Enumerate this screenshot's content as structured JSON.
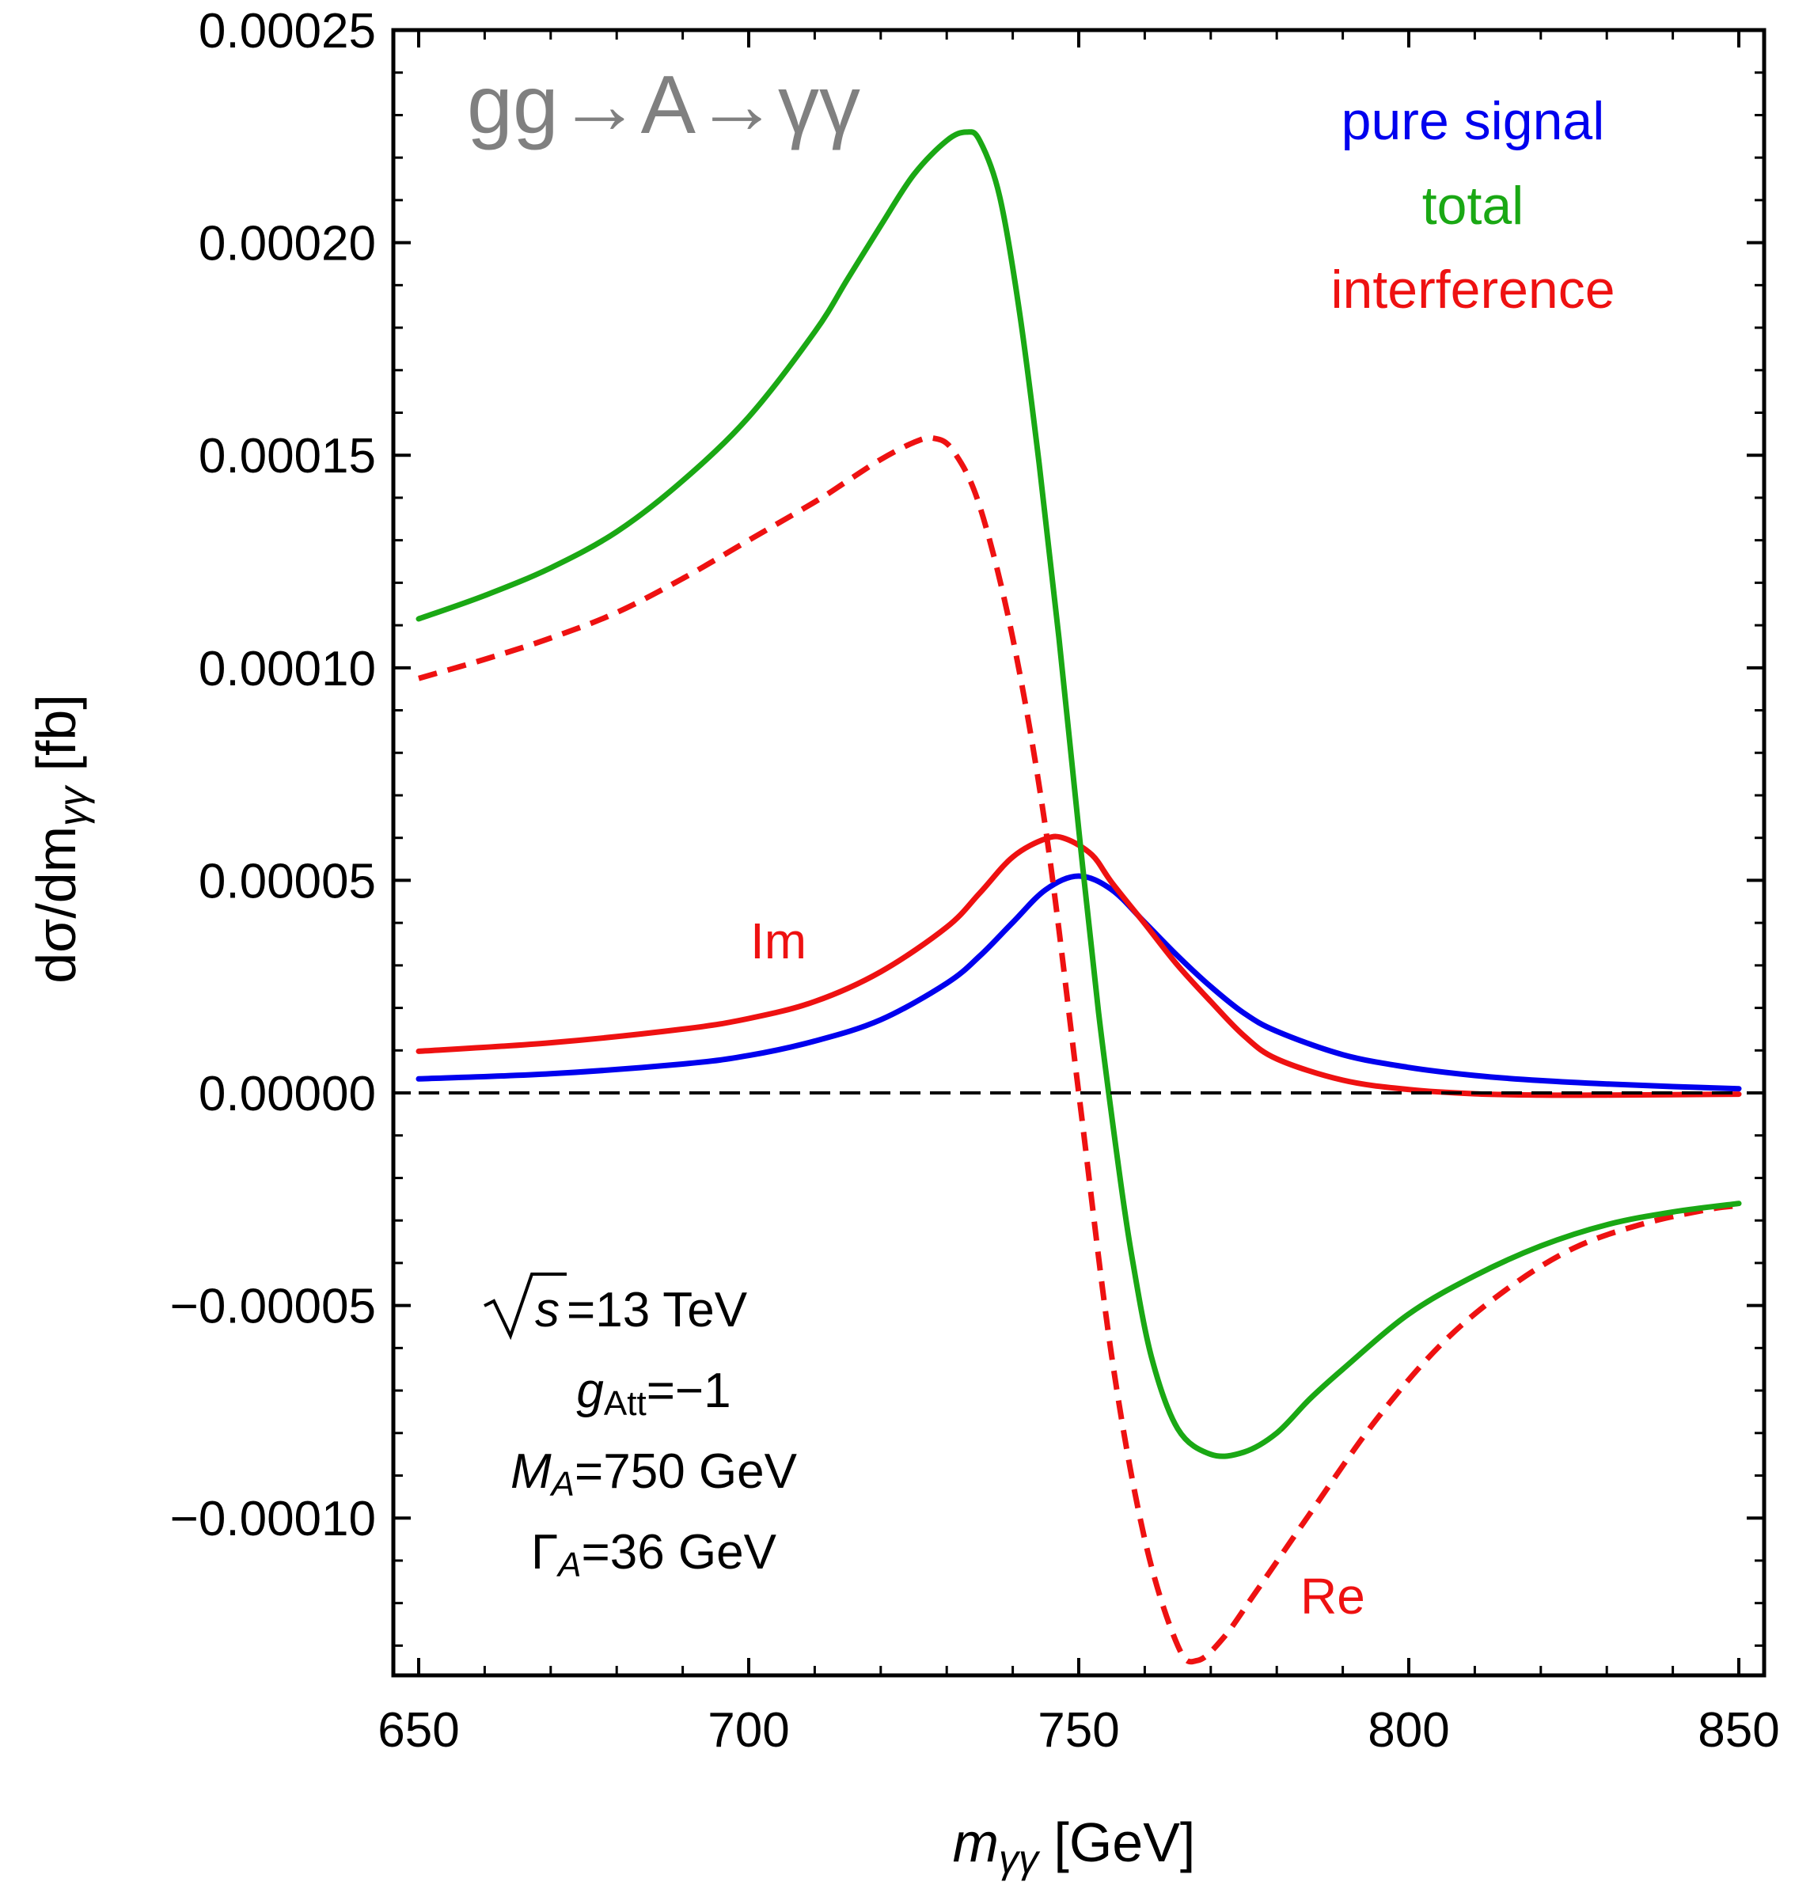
{
  "chart_data": {
    "type": "line",
    "title": "gg→A→γγ",
    "xlabel": "m",
    "xlabel_sub": "γγ",
    "xlabel_unit": " [GeV]",
    "ylabel": "dσ/dm",
    "ylabel_sub": "γγ",
    "ylabel_unit": " [fb]",
    "xlim": [
      650,
      850
    ],
    "ylim": [
      -0.000137,
      0.00025
    ],
    "x_ticks": [
      650,
      700,
      750,
      800,
      850
    ],
    "x_tick_labels": [
      "650",
      "700",
      "750",
      "800",
      "850"
    ],
    "y_ticks": [
      -0.0001,
      -5e-05,
      0,
      5e-05,
      0.0001,
      0.00015,
      0.0002,
      0.00025
    ],
    "y_tick_labels": [
      "−0.00010",
      "−0.00005",
      "0.00000",
      "0.00005",
      "0.00010",
      "0.00015",
      "0.00020",
      "0.00025"
    ],
    "legend": [
      {
        "label": "pure signal",
        "color": "#0000ee"
      },
      {
        "label": "total",
        "color": "#1aa814"
      },
      {
        "label": "interference",
        "color": "#ee1111"
      }
    ],
    "annotations": {
      "im_label": "Im",
      "re_label": "Re",
      "params": {
        "sqrt_s_value": "=13 TeV",
        "g_symbol": "g",
        "g_sub": "Att",
        "g_value": "=−1",
        "mass_symbol": "M",
        "mass_sub": "A",
        "mass_value": "=750 GeV",
        "width_symbol": "Γ",
        "width_sub": "A",
        "width_value": "=36 GeV"
      }
    },
    "series": [
      {
        "name": "pure signal",
        "color": "#0000ee",
        "style": "solid",
        "x": [
          650,
          670,
          690,
          700,
          710,
          720,
          730,
          735,
          740,
          745,
          750,
          755,
          760,
          765,
          770,
          775,
          780,
          790,
          800,
          810,
          820,
          830,
          840,
          850
        ],
        "values": [
          3.3e-06,
          4.5e-06,
          6.8e-06,
          8.8e-06,
          1.22e-05,
          1.72e-05,
          2.58e-05,
          3.22e-05,
          4.01e-05,
          4.78e-05,
          5.1e-05,
          4.78e-05,
          4.01e-05,
          3.22e-05,
          2.5e-05,
          1.88e-05,
          1.45e-05,
          9e-06,
          6e-06,
          4.1e-06,
          2.9e-06,
          2.1e-06,
          1.5e-06,
          1e-06
        ]
      },
      {
        "name": "interference (Im)",
        "color": "#ee1111",
        "style": "solid",
        "x": [
          650,
          670,
          690,
          700,
          710,
          720,
          730,
          735,
          740,
          745,
          748,
          752,
          755,
          760,
          765,
          770,
          775,
          780,
          790,
          800,
          810,
          820,
          830,
          840,
          850
        ],
        "values": [
          9.8e-06,
          1.18e-05,
          1.5e-05,
          1.75e-05,
          2.15e-05,
          2.85e-05,
          3.9e-05,
          4.7e-05,
          5.55e-05,
          5.98e-05,
          5.98e-05,
          5.6e-05,
          4.95e-05,
          3.98e-05,
          3e-05,
          2.15e-05,
          1.35e-05,
          8e-06,
          3e-06,
          8e-07,
          -2e-07,
          -5e-07,
          -5e-07,
          -4e-07,
          -3e-07
        ]
      },
      {
        "name": "interference (Re)",
        "color": "#ee1111",
        "style": "dashed",
        "x": [
          650,
          660,
          670,
          680,
          690,
          700,
          710,
          715,
          720,
          725,
          728,
          731,
          735,
          740,
          745,
          750,
          755,
          760,
          765,
          768,
          772,
          777,
          785,
          795,
          805,
          815,
          825,
          835,
          845,
          850
        ],
        "values": [
          9.75e-05,
          0.000102,
          0.000107,
          0.000113,
          0.000121,
          0.00013,
          0.000139,
          0.000144,
          0.000149,
          0.000153,
          0.000154,
          0.000151,
          0.000138,
          0.000107,
          6.2e-05,
          0.0,
          -6.2e-05,
          -0.000105,
          -0.00013,
          -0.0001335,
          -0.000128,
          -0.000117,
          -9.9e-05,
          -7.7e-05,
          -5.9e-05,
          -4.6e-05,
          -3.65e-05,
          -3.1e-05,
          -2.75e-05,
          -2.65e-05
        ]
      },
      {
        "name": "total",
        "color": "#1aa814",
        "style": "solid",
        "x": [
          650,
          660,
          670,
          680,
          690,
          700,
          710,
          715,
          720,
          725,
          730,
          733,
          735,
          738,
          741,
          744,
          747,
          750,
          753,
          756,
          758,
          761,
          765,
          770,
          775,
          780,
          785,
          790,
          800,
          810,
          820,
          830,
          840,
          850
        ],
        "values": [
          0.0001115,
          0.000117,
          0.0001235,
          0.000132,
          0.000144,
          0.000159,
          0.000179,
          0.0001915,
          0.000204,
          0.000216,
          0.000224,
          0.000226,
          0.000224,
          0.000211,
          0.000184,
          0.000148,
          0.000107,
          6.2e-05,
          1.9e-05,
          -1.7e-05,
          -3.8e-05,
          -6.2e-05,
          -7.9e-05,
          -8.5e-05,
          -8.45e-05,
          -8e-05,
          -7.2e-05,
          -6.5e-05,
          -5.2e-05,
          -4.3e-05,
          -3.6e-05,
          -3.1e-05,
          -2.8e-05,
          -2.6e-05
        ]
      }
    ]
  }
}
